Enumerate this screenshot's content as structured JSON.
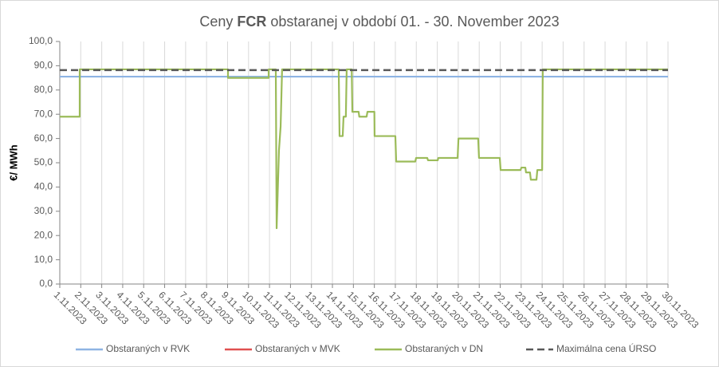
{
  "chart_data": {
    "type": "line",
    "title": [
      "Ceny",
      "FCR",
      "obstaranej v období 01. - 30. November 2023"
    ],
    "y_label": "€/ MWh",
    "xlim": [
      1,
      30
    ],
    "xticks": [
      {
        "value": 1,
        "label": "1.11.2023"
      },
      {
        "value": 2,
        "label": "2.11.2023"
      },
      {
        "value": 3,
        "label": "3.11.2023"
      },
      {
        "value": 4,
        "label": "4.11.2023"
      },
      {
        "value": 5,
        "label": "5.11.2023"
      },
      {
        "value": 6,
        "label": "6.11.2023"
      },
      {
        "value": 7,
        "label": "7.11.2023"
      },
      {
        "value": 8,
        "label": "8.11.2023"
      },
      {
        "value": 9,
        "label": "9.11.2023"
      },
      {
        "value": 10,
        "label": "10.11.2023"
      },
      {
        "value": 11,
        "label": "11.11.2023"
      },
      {
        "value": 12,
        "label": "12.11.2023"
      },
      {
        "value": 13,
        "label": "13.11.2023"
      },
      {
        "value": 14,
        "label": "14.11.2023"
      },
      {
        "value": 15,
        "label": "15.11.2023"
      },
      {
        "value": 16,
        "label": "16.11.2023"
      },
      {
        "value": 17,
        "label": "17.11.2023"
      },
      {
        "value": 18,
        "label": "18.11.2023"
      },
      {
        "value": 19,
        "label": "19.11.2023"
      },
      {
        "value": 20,
        "label": "20.11.2023"
      },
      {
        "value": 21,
        "label": "21.11.2023"
      },
      {
        "value": 22,
        "label": "22.11.2023"
      },
      {
        "value": 23,
        "label": "23.11.2023"
      },
      {
        "value": 24,
        "label": "24.11.2023"
      },
      {
        "value": 25,
        "label": "25.11.2023"
      },
      {
        "value": 26,
        "label": "26.11.2023"
      },
      {
        "value": 27,
        "label": "27.11.2023"
      },
      {
        "value": 28,
        "label": "28.11.2023"
      },
      {
        "value": 29,
        "label": "29.11.2023"
      },
      {
        "value": 30,
        "label": "30.11.2023"
      }
    ],
    "ylim": [
      0,
      100
    ],
    "yticks": [
      {
        "value": 0,
        "label": "0,0"
      },
      {
        "value": 10,
        "label": "10,0"
      },
      {
        "value": 20,
        "label": "20,0"
      },
      {
        "value": 30,
        "label": "30,0"
      },
      {
        "value": 40,
        "label": "40,0"
      },
      {
        "value": 50,
        "label": "50,0"
      },
      {
        "value": 60,
        "label": "60,0"
      },
      {
        "value": 70,
        "label": "70,0"
      },
      {
        "value": 80,
        "label": "80,0"
      },
      {
        "value": 90,
        "label": "90,0"
      },
      {
        "value": 100,
        "label": "100,0"
      }
    ],
    "x_grid": true,
    "series": [
      {
        "name": "Obstaraných v RVK",
        "color": "#8eb4e3",
        "x": [
          1,
          30
        ],
        "values": [
          85.5,
          85.5
        ]
      },
      {
        "name": "Obstaraných v MVK",
        "color": "#e05050",
        "x": [
          1,
          30
        ],
        "values": [
          null,
          null
        ]
      },
      {
        "name": "Obstaraných v DN",
        "color": "#9bbb59",
        "x": [
          1,
          1.95,
          1.95,
          9.02,
          9.02,
          10.96,
          10.96,
          11.3,
          11.34,
          11.45,
          11.53,
          11.6,
          14.3,
          14.34,
          14.49,
          14.53,
          14.64,
          14.68,
          14.92,
          14.95,
          15.25,
          15.28,
          15.63,
          15.67,
          16.0,
          16.01,
          17.0,
          17.04,
          17.95,
          17.99,
          18.52,
          18.56,
          19.02,
          19.05,
          19.97,
          20.01,
          20.95,
          20.99,
          21.98,
          22.02,
          22.97,
          23.01,
          23.2,
          23.23,
          23.42,
          23.46,
          23.73,
          23.77,
          24.0,
          24.03,
          30
        ],
        "values": [
          69,
          69,
          88.5,
          88.5,
          85,
          85,
          88.5,
          88.5,
          23,
          55,
          65,
          88.5,
          88.5,
          61,
          61,
          69,
          69,
          88.5,
          88.5,
          71,
          71,
          69,
          69,
          71,
          71,
          61,
          61,
          50.5,
          50.5,
          52,
          52,
          51,
          51,
          52,
          52,
          60,
          60,
          52,
          52,
          47,
          47,
          48,
          48,
          46,
          46,
          43,
          43,
          47,
          47,
          88.5,
          88.5
        ]
      },
      {
        "name": "Maximálna cena ÚRSO",
        "color": "#595959",
        "dashed": true,
        "x": [
          1,
          30
        ],
        "values": [
          88.2,
          88.2
        ]
      }
    ]
  }
}
